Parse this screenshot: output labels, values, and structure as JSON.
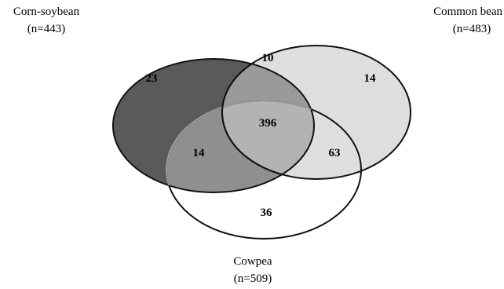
{
  "sets": [
    {
      "key": "corn",
      "name": "Corn-soybean",
      "count_label": "(n=443)",
      "fill": "#5a5a5a"
    },
    {
      "key": "bean",
      "name": "Common bean",
      "count_label": "(n=483)",
      "fill": "#dedede"
    },
    {
      "key": "cowpea",
      "name": "Cowpea",
      "count_label": "(n=509)",
      "fill": "#ffffff"
    }
  ],
  "regions": {
    "corn_only": "23",
    "bean_only": "14",
    "cowpea_only": "36",
    "corn_bean": "10",
    "corn_cowpea": "14",
    "bean_cowpea": "63",
    "all_three": "396"
  }
}
